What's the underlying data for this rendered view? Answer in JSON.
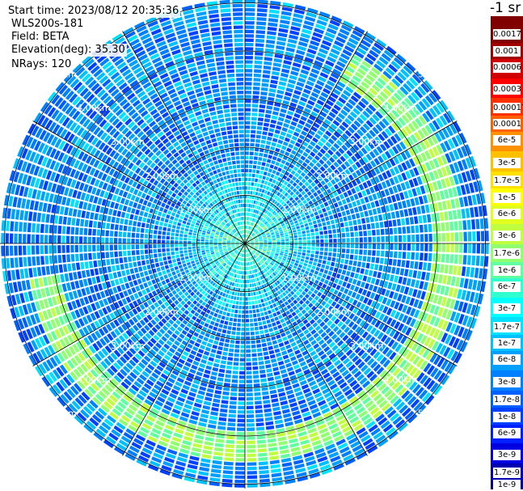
{
  "info": {
    "start_time": "Start time: 2023/08/12 20:35:36",
    "instrument": "WLS200s-181",
    "field": "Field: BETA",
    "elevation": "Elevation(deg): 35.30",
    "nrays": "NRays: 120"
  },
  "chart_data": {
    "type": "heatmap",
    "projection": "polar PPI",
    "grid": true,
    "ring_labels": [
      "1.00km",
      "2.00km",
      "3.00km",
      "4.00km",
      "5.00km"
    ],
    "range_max_km": 5.2,
    "nrays": 120,
    "colorbar": {
      "title": "-1 sr",
      "scale": "log",
      "range": [
        1e-09,
        0.003
      ],
      "ticks": [
        "0.0017",
        "0.001",
        "0.0006",
        "0.0003",
        "0.00017",
        "0.0001",
        "6e-5",
        "3e-5",
        "1.7e-5",
        "1e-5",
        "6e-6",
        "3e-6",
        "1.7e-6",
        "1e-6",
        "6e-7",
        "3e-7",
        "1.7e-7",
        "1e-7",
        "6e-8",
        "3e-8",
        "1.7e-8",
        "1e-8",
        "6e-9",
        "3e-9",
        "1.7e-9",
        "1e-9"
      ],
      "tick_values": [
        0.0017,
        0.001,
        0.0006,
        0.0003,
        0.00017,
        0.0001,
        6e-05,
        3e-05,
        1.7e-05,
        1e-05,
        6e-06,
        3e-06,
        1.7e-06,
        1e-06,
        6e-07,
        3e-07,
        1.7e-07,
        1e-07,
        6e-08,
        3e-08,
        1.7e-08,
        1e-08,
        6e-09,
        3e-09,
        1.7e-09,
        1e-09
      ],
      "colors": [
        "#800000",
        "#a00000",
        "#d00000",
        "#ff0000",
        "#ff3000",
        "#ff6000",
        "#ff9000",
        "#ffc000",
        "#ffe000",
        "#ffff00",
        "#e0ff20",
        "#c0ff40",
        "#90ff70",
        "#60ffa0",
        "#30ffd0",
        "#00ffff",
        "#00e0ff",
        "#00c0ff",
        "#00a0ff",
        "#0080ff",
        "#0060ff",
        "#0040ff",
        "#0020ff",
        "#0000e0",
        "#0000b0",
        "#000080"
      ]
    },
    "features": {
      "background_beta": 3e-08,
      "aerosol_arc": {
        "range_km": [
          4.0,
          4.6
        ],
        "azimuth_deg": [
          30,
          260
        ],
        "beta": 1.7e-06
      }
    }
  }
}
